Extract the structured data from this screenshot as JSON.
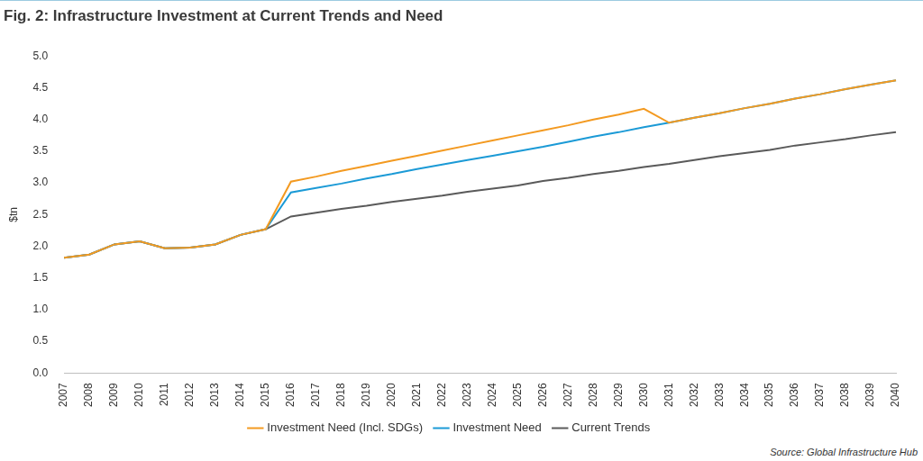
{
  "chart_data": {
    "type": "line",
    "title": "Fig. 2: Infrastructure Investment at Current Trends and Need",
    "y_label": "$tn",
    "source": "Source: Global Infrastructure Hub",
    "categories": [
      "2007",
      "2008",
      "2009",
      "2010",
      "2011",
      "2012",
      "2013",
      "2014",
      "2015",
      "2016",
      "2017",
      "2018",
      "2019",
      "2020",
      "2021",
      "2022",
      "2023",
      "2024",
      "2025",
      "2026",
      "2027",
      "2028",
      "2029",
      "2030",
      "2031",
      "2032",
      "2033",
      "2034",
      "2035",
      "2036",
      "2037",
      "2038",
      "2039",
      "2040"
    ],
    "series": [
      {
        "name": "Current Trends",
        "color": "#5a5a5a",
        "values": [
          1.82,
          1.87,
          2.03,
          2.08,
          1.97,
          1.98,
          2.03,
          2.18,
          2.27,
          2.47,
          2.53,
          2.59,
          2.64,
          2.7,
          2.75,
          2.8,
          2.86,
          2.91,
          2.96,
          3.03,
          3.08,
          3.14,
          3.19,
          3.25,
          3.3,
          3.36,
          3.42,
          3.47,
          3.52,
          3.59,
          3.64,
          3.69,
          3.75,
          3.8
        ]
      },
      {
        "name": "Investment Need",
        "color": "#1b9ad6",
        "values": [
          1.82,
          1.87,
          2.03,
          2.08,
          1.97,
          1.98,
          2.03,
          2.18,
          2.27,
          2.85,
          2.92,
          2.99,
          3.07,
          3.14,
          3.22,
          3.29,
          3.36,
          3.43,
          3.5,
          3.57,
          3.65,
          3.73,
          3.8,
          3.88,
          3.95,
          4.03,
          4.1,
          4.18,
          4.25,
          4.33,
          4.4,
          4.48,
          4.55,
          4.62
        ]
      },
      {
        "name": "Investment Need (Incl. SDGs)",
        "color": "#f39a21",
        "values": [
          1.82,
          1.87,
          2.03,
          2.08,
          1.97,
          1.98,
          2.03,
          2.18,
          2.27,
          3.02,
          3.1,
          3.19,
          3.27,
          3.35,
          3.43,
          3.51,
          3.59,
          3.67,
          3.75,
          3.83,
          3.91,
          4.0,
          4.08,
          4.17,
          3.95,
          4.03,
          4.1,
          4.18,
          4.25,
          4.33,
          4.4,
          4.48,
          4.55,
          4.62
        ]
      }
    ],
    "ylim": [
      0,
      5
    ],
    "yticks": [
      {
        "value": 0,
        "label": "0.0"
      },
      0.5,
      {
        "value": 1,
        "label": "1.0"
      },
      1.5,
      {
        "value": 2,
        "label": "2.0"
      },
      2.5,
      {
        "value": 3,
        "label": "3.0"
      },
      3.5,
      {
        "value": 4,
        "label": "4.0"
      },
      4.5,
      {
        "value": 5,
        "label": "5.0"
      }
    ],
    "grid": false,
    "legend": "bottom"
  }
}
